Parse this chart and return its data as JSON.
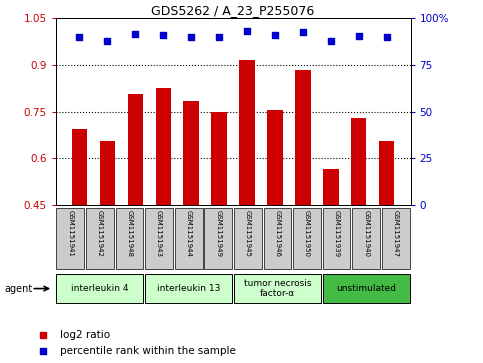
{
  "title": "GDS5262 / A_23_P255076",
  "samples": [
    "GSM1151941",
    "GSM1151942",
    "GSM1151948",
    "GSM1151943",
    "GSM1151944",
    "GSM1151949",
    "GSM1151945",
    "GSM1151946",
    "GSM1151950",
    "GSM1151939",
    "GSM1151940",
    "GSM1151947"
  ],
  "log2_ratio": [
    0.695,
    0.655,
    0.805,
    0.825,
    0.785,
    0.75,
    0.915,
    0.755,
    0.885,
    0.565,
    0.73,
    0.655
  ],
  "percentile_left": [
    0.9,
    0.88,
    0.915,
    0.91,
    0.897,
    0.9,
    0.932,
    0.908,
    0.925,
    0.88,
    0.905,
    0.9
  ],
  "ylim_left": [
    0.45,
    1.05
  ],
  "ylim_right": [
    0.0,
    1.0
  ],
  "yticks_left": [
    0.45,
    0.6,
    0.75,
    0.9,
    1.05
  ],
  "ytick_labels_left": [
    "0.45",
    "0.6",
    "0.75",
    "0.9",
    "1.05"
  ],
  "yticks_right": [
    0.0,
    0.25,
    0.5,
    0.75,
    1.0
  ],
  "ytick_labels_right": [
    "0",
    "25",
    "50",
    "75",
    "100%"
  ],
  "hlines": [
    0.6,
    0.75,
    0.9
  ],
  "bar_color": "#cc0000",
  "scatter_color": "#0000cc",
  "agent_groups": [
    {
      "label": "interleukin 4",
      "start": 0,
      "end": 2,
      "color": "#ccffcc"
    },
    {
      "label": "interleukin 13",
      "start": 3,
      "end": 5,
      "color": "#ccffcc"
    },
    {
      "label": "tumor necrosis\nfactor-α",
      "start": 6,
      "end": 8,
      "color": "#ccffcc"
    },
    {
      "label": "unstimulated",
      "start": 9,
      "end": 11,
      "color": "#44bb44"
    }
  ],
  "agent_label": "agent",
  "legend_log2": "log2 ratio",
  "legend_pct": "percentile rank within the sample",
  "bg_color_plot": "#ffffff",
  "bg_color_xticklabels": "#cccccc",
  "bar_width": 0.55
}
